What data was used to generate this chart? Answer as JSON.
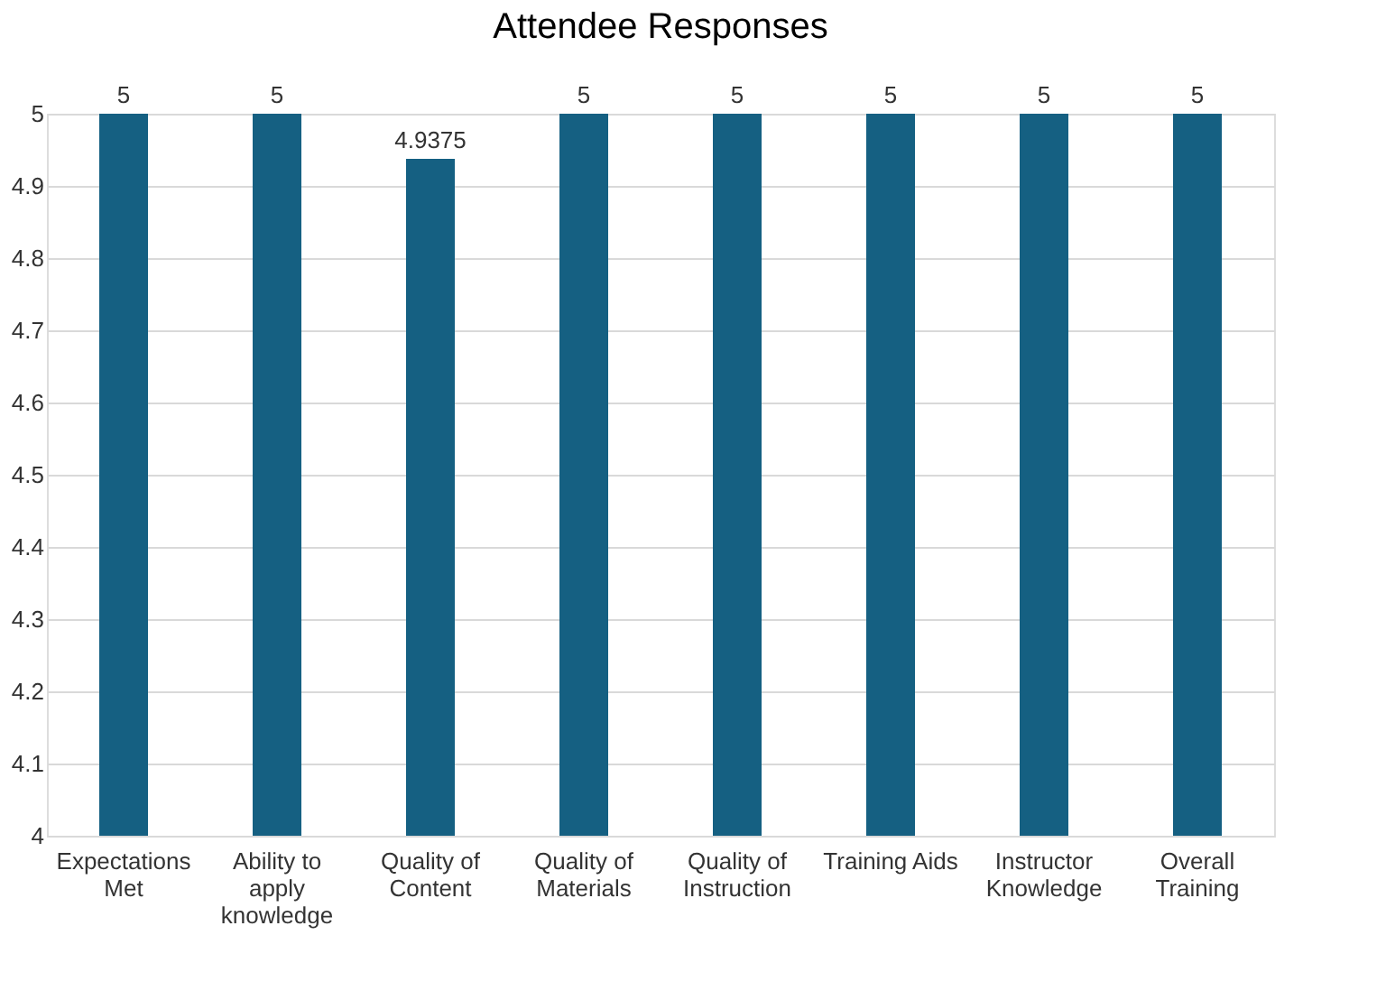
{
  "chart_data": {
    "type": "bar",
    "title": "Attendee Responses",
    "categories": [
      "Expectations Met",
      "Ability to apply knowledge",
      "Quality of Content",
      "Quality of Materials",
      "Quality of Instruction",
      "Training Aids",
      "Instructor Knowledge",
      "Overall Training"
    ],
    "values": [
      5,
      5,
      4.9375,
      5,
      5,
      5,
      5,
      5
    ],
    "color": "#156082",
    "ylim": [
      4,
      5
    ],
    "yticks": [
      4,
      4.1,
      4.2,
      4.3,
      4.4,
      4.5,
      4.6,
      4.7,
      4.8,
      4.9,
      5
    ],
    "grid": "y",
    "data_labels": true
  }
}
